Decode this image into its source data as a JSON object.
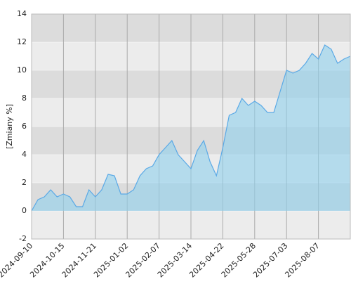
{
  "chart_data": {
    "type": "area",
    "y_label": "[Zmiany %]",
    "categories": [
      "2024-09-10",
      null,
      null,
      null,
      null,
      "2024-10-15",
      null,
      null,
      null,
      null,
      "2024-11-21",
      null,
      null,
      null,
      null,
      "2025-01-02",
      null,
      null,
      null,
      null,
      "2025-02-07",
      null,
      null,
      null,
      null,
      "2025-03-14",
      null,
      null,
      null,
      null,
      "2025-04-22",
      null,
      null,
      null,
      null,
      "2025-05-28",
      null,
      null,
      null,
      null,
      "2025-07-03",
      null,
      null,
      null,
      null,
      "2025-08-07",
      null,
      null,
      null,
      null,
      null
    ],
    "values": [
      0,
      0.8,
      1.0,
      1.5,
      1.0,
      1.2,
      1.0,
      0.3,
      0.3,
      1.5,
      1.0,
      1.5,
      2.6,
      2.5,
      1.2,
      1.2,
      1.5,
      2.5,
      3.0,
      3.2,
      4.0,
      4.5,
      5.0,
      4.0,
      3.5,
      3.0,
      4.3,
      5.0,
      3.5,
      2.5,
      4.5,
      6.8,
      7.0,
      8.0,
      7.5,
      7.8,
      7.5,
      7.0,
      7.0,
      8.5,
      10.0,
      9.8,
      10.0,
      10.5,
      11.2,
      10.8,
      11.8,
      11.5,
      10.5,
      10.8,
      11.0
    ],
    "color": "#5aa9e6",
    "ylim": [
      -2,
      14
    ],
    "yticks": [
      -2,
      0,
      2,
      4,
      6,
      8,
      10,
      12,
      14
    ],
    "grid": true
  }
}
